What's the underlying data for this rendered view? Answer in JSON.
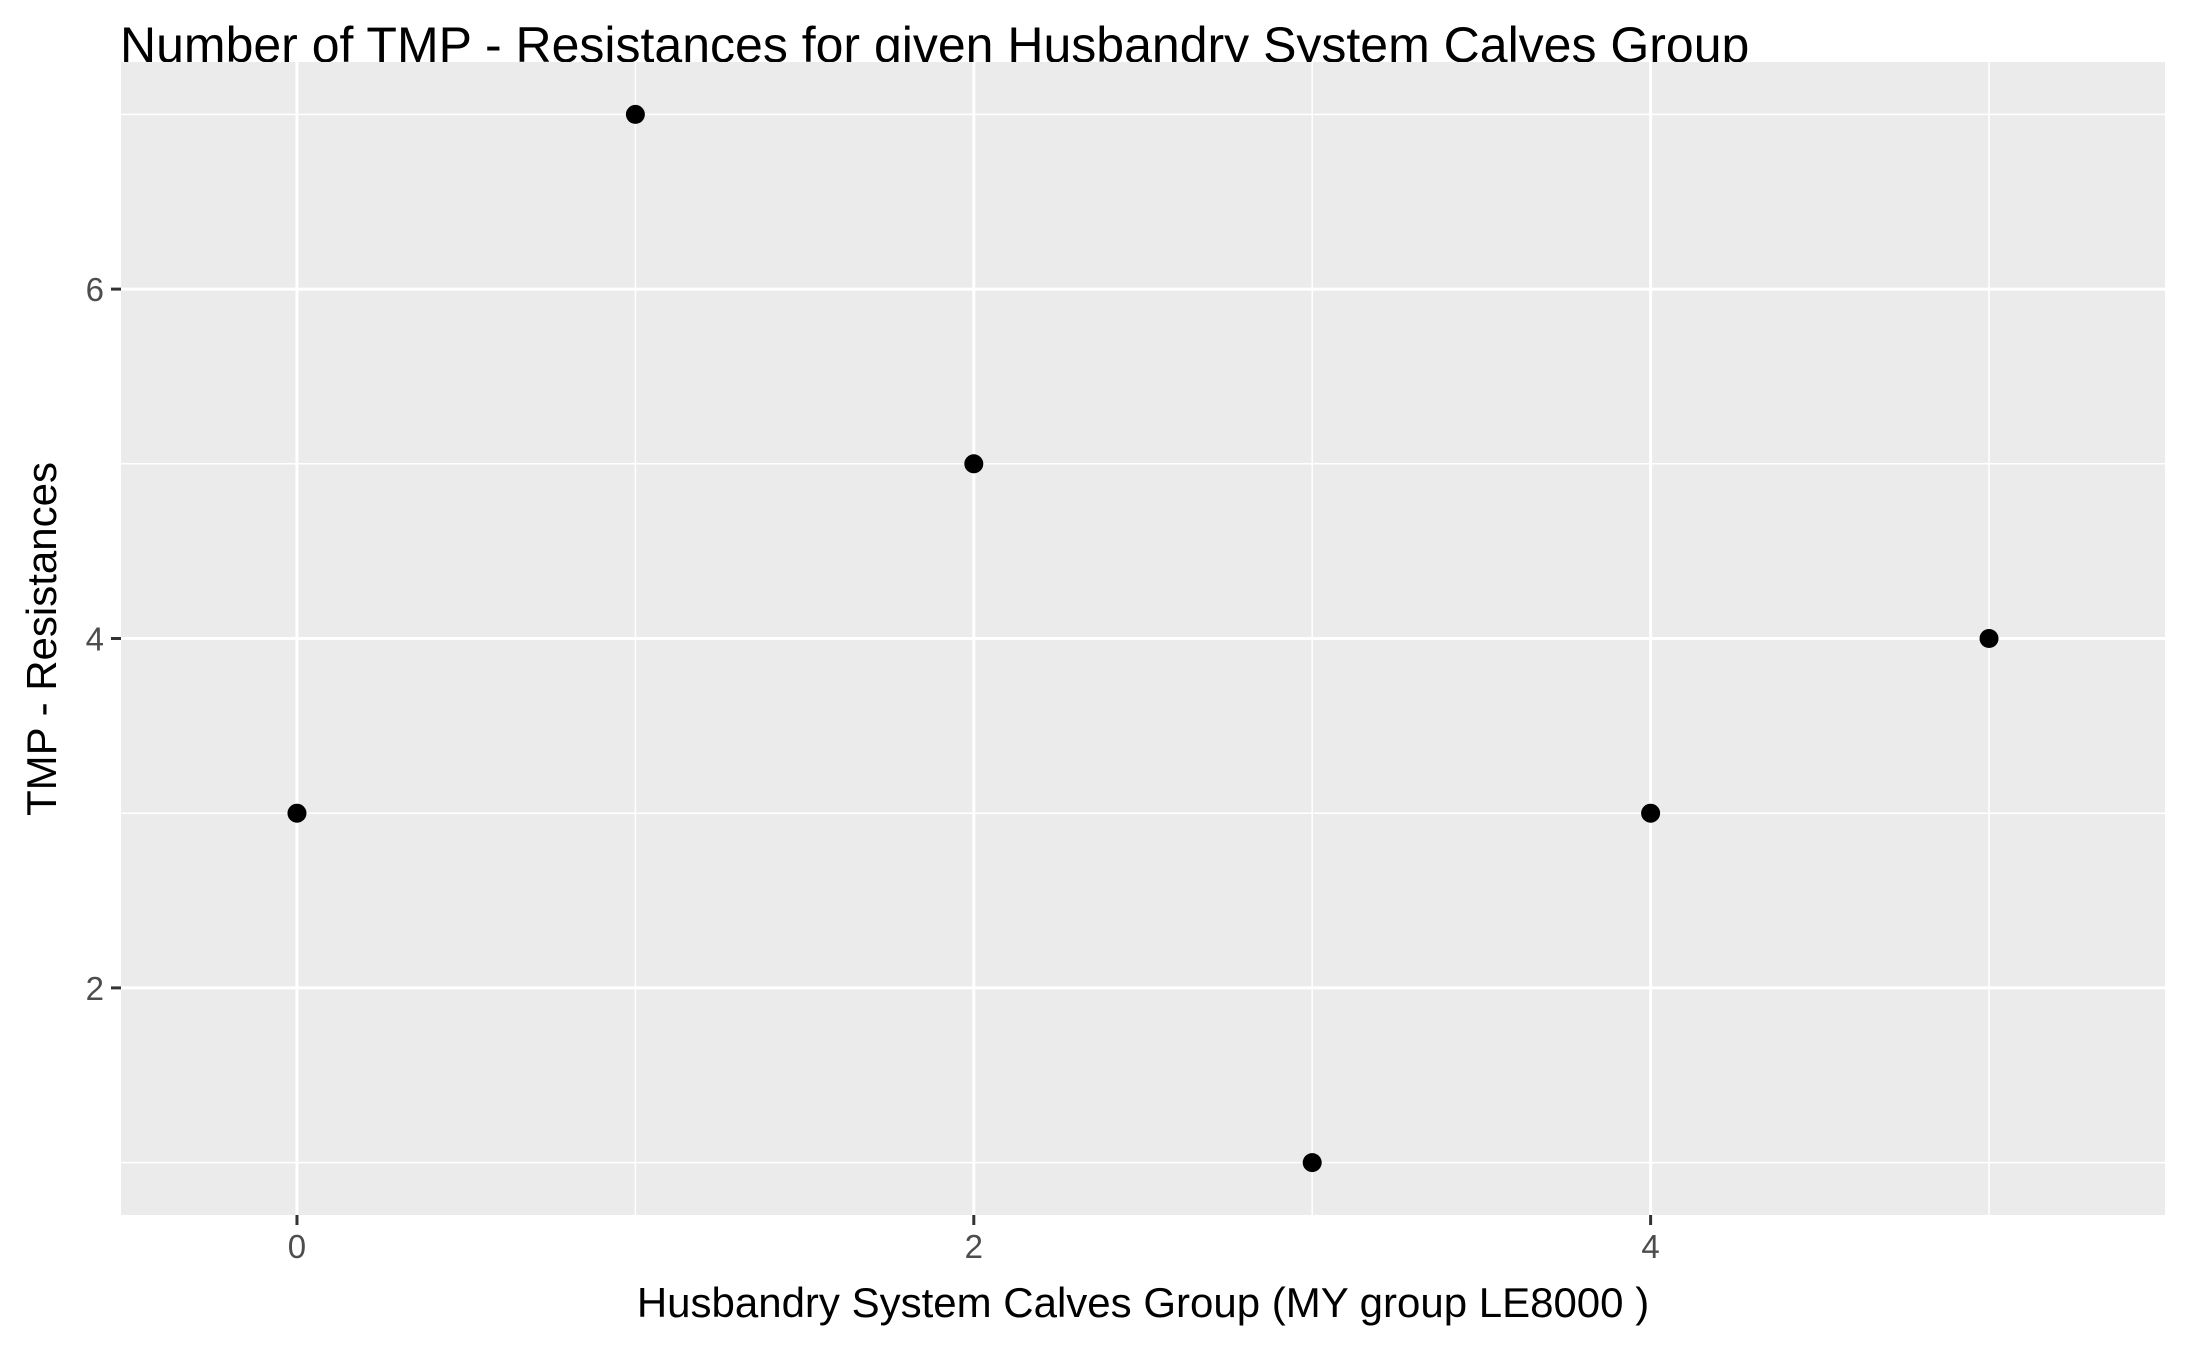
{
  "chart_data": {
    "type": "scatter",
    "title": "Number of TMP - Resistances for given Husbandry System Calves Group",
    "xlabel": "Husbandry System Calves Group     (MY group LE8000 )",
    "ylabel": "TMP - Resistances",
    "xlim": [
      -0.52,
      5.52
    ],
    "ylim": [
      0.7,
      7.3
    ],
    "x_ticks": [
      0,
      2,
      4
    ],
    "x_minor_ticks": [
      1,
      3,
      5
    ],
    "y_ticks": [
      2,
      4,
      6
    ],
    "y_minor_ticks": [
      1,
      3,
      5,
      7
    ],
    "x_tick_labels": [
      "0",
      "2",
      "4"
    ],
    "y_tick_labels": [
      "2",
      "4",
      "6"
    ],
    "grid": true,
    "colors": {
      "panel_background": "#ebebeb",
      "grid_line": "#ffffff",
      "point": "#000000",
      "tick_label": "#4d4d4d",
      "axis_tick": "#333333"
    },
    "series": [
      {
        "x": [
          0,
          1,
          2,
          3,
          4,
          5
        ],
        "y": [
          3,
          7,
          5,
          1,
          3,
          4
        ]
      }
    ]
  }
}
